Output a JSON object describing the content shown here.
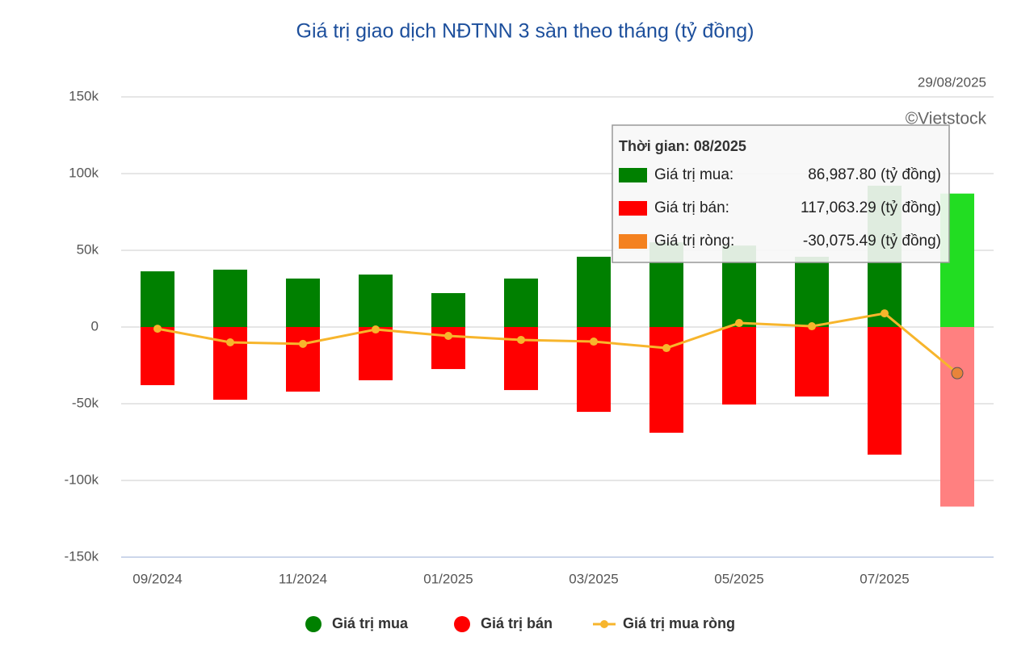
{
  "chart_data": {
    "type": "bar",
    "title": "Giá trị giao dịch NĐTNN 3 sàn theo tháng (tỷ đồng)",
    "date": "29/08/2025",
    "credit": "©Vietstock",
    "categories": [
      "09/2024",
      null,
      "11/2024",
      null,
      "01/2025",
      null,
      "03/2025",
      null,
      "05/2025",
      null,
      "07/2025",
      null
    ],
    "series": [
      {
        "name": "Giá trị mua",
        "type": "bar",
        "color": "#008000",
        "hover_color": "#22dd22",
        "values": [
          36300,
          37400,
          31600,
          34200,
          22100,
          31600,
          45800,
          55200,
          53100,
          45800,
          92100,
          86987.8
        ]
      },
      {
        "name": "Giá trị bán",
        "type": "bar",
        "color": "#ff0000",
        "hover_color": "#ff8080",
        "values": [
          -37900,
          -47400,
          -42100,
          -34700,
          -27400,
          -41100,
          -55300,
          -68900,
          -50500,
          -45300,
          -83200,
          -117063.29
        ]
      },
      {
        "name": "Giá trị mua ròng",
        "type": "line",
        "color": "#f7b52c",
        "hover_color": "#e8843a",
        "values": [
          -1100,
          -10000,
          -11000,
          -1600,
          -5800,
          -8400,
          -9500,
          -13700,
          2600,
          500,
          8900,
          -30075.49
        ]
      }
    ],
    "ylim": [
      -150000,
      150000
    ],
    "yticks": [
      {
        "value": -150000,
        "label": "-150k"
      },
      {
        "value": -100000,
        "label": "-100k"
      },
      {
        "value": -50000,
        "label": "-50k"
      },
      0,
      {
        "value": 50000,
        "label": "50k"
      },
      {
        "value": 100000,
        "label": "100k"
      },
      {
        "value": 150000,
        "label": "150k"
      }
    ],
    "grid": true,
    "highlight_index": 11,
    "tooltip": {
      "title": "Thời gian: 08/2025",
      "rows": [
        {
          "label": "Giá trị mua:",
          "value": "86,987.80 (tỷ đồng)",
          "color": "#008000"
        },
        {
          "label": "Giá trị bán:",
          "value": "117,063.29 (tỷ đồng)",
          "color": "#ff0000"
        },
        {
          "label": "Giá trị ròng:",
          "value": "-30,075.49 (tỷ đồng)",
          "color": "#f4811f"
        }
      ]
    }
  }
}
